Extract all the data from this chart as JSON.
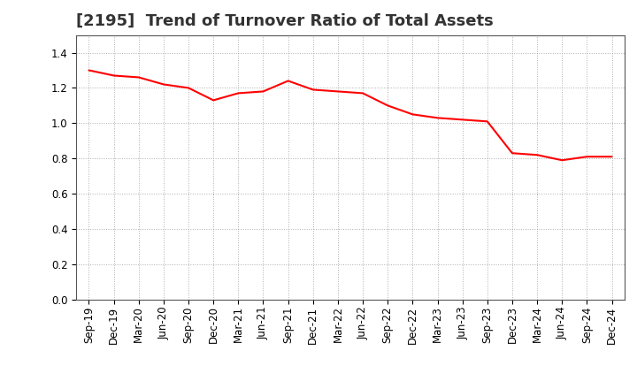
{
  "title": "[2195]  Trend of Turnover Ratio of Total Assets",
  "line_color": "#FF0000",
  "line_width": 1.5,
  "background_color": "#FFFFFF",
  "grid_color": "#999999",
  "ylim": [
    0.0,
    1.5
  ],
  "yticks": [
    0.0,
    0.2,
    0.4,
    0.6,
    0.8,
    1.0,
    1.2,
    1.4
  ],
  "x_labels": [
    "Sep-19",
    "Dec-19",
    "Mar-20",
    "Jun-20",
    "Sep-20",
    "Dec-20",
    "Mar-21",
    "Jun-21",
    "Sep-21",
    "Dec-21",
    "Mar-22",
    "Jun-22",
    "Sep-22",
    "Dec-22",
    "Mar-23",
    "Jun-23",
    "Sep-23",
    "Dec-23",
    "Mar-24",
    "Jun-24",
    "Sep-24",
    "Dec-24"
  ],
  "values": [
    1.3,
    1.27,
    1.26,
    1.22,
    1.2,
    1.13,
    1.17,
    1.18,
    1.24,
    1.19,
    1.18,
    1.17,
    1.1,
    1.05,
    1.03,
    1.02,
    1.01,
    0.83,
    0.82,
    0.79,
    0.81,
    0.81
  ],
  "title_fontsize": 13,
  "tick_fontsize": 8.5
}
